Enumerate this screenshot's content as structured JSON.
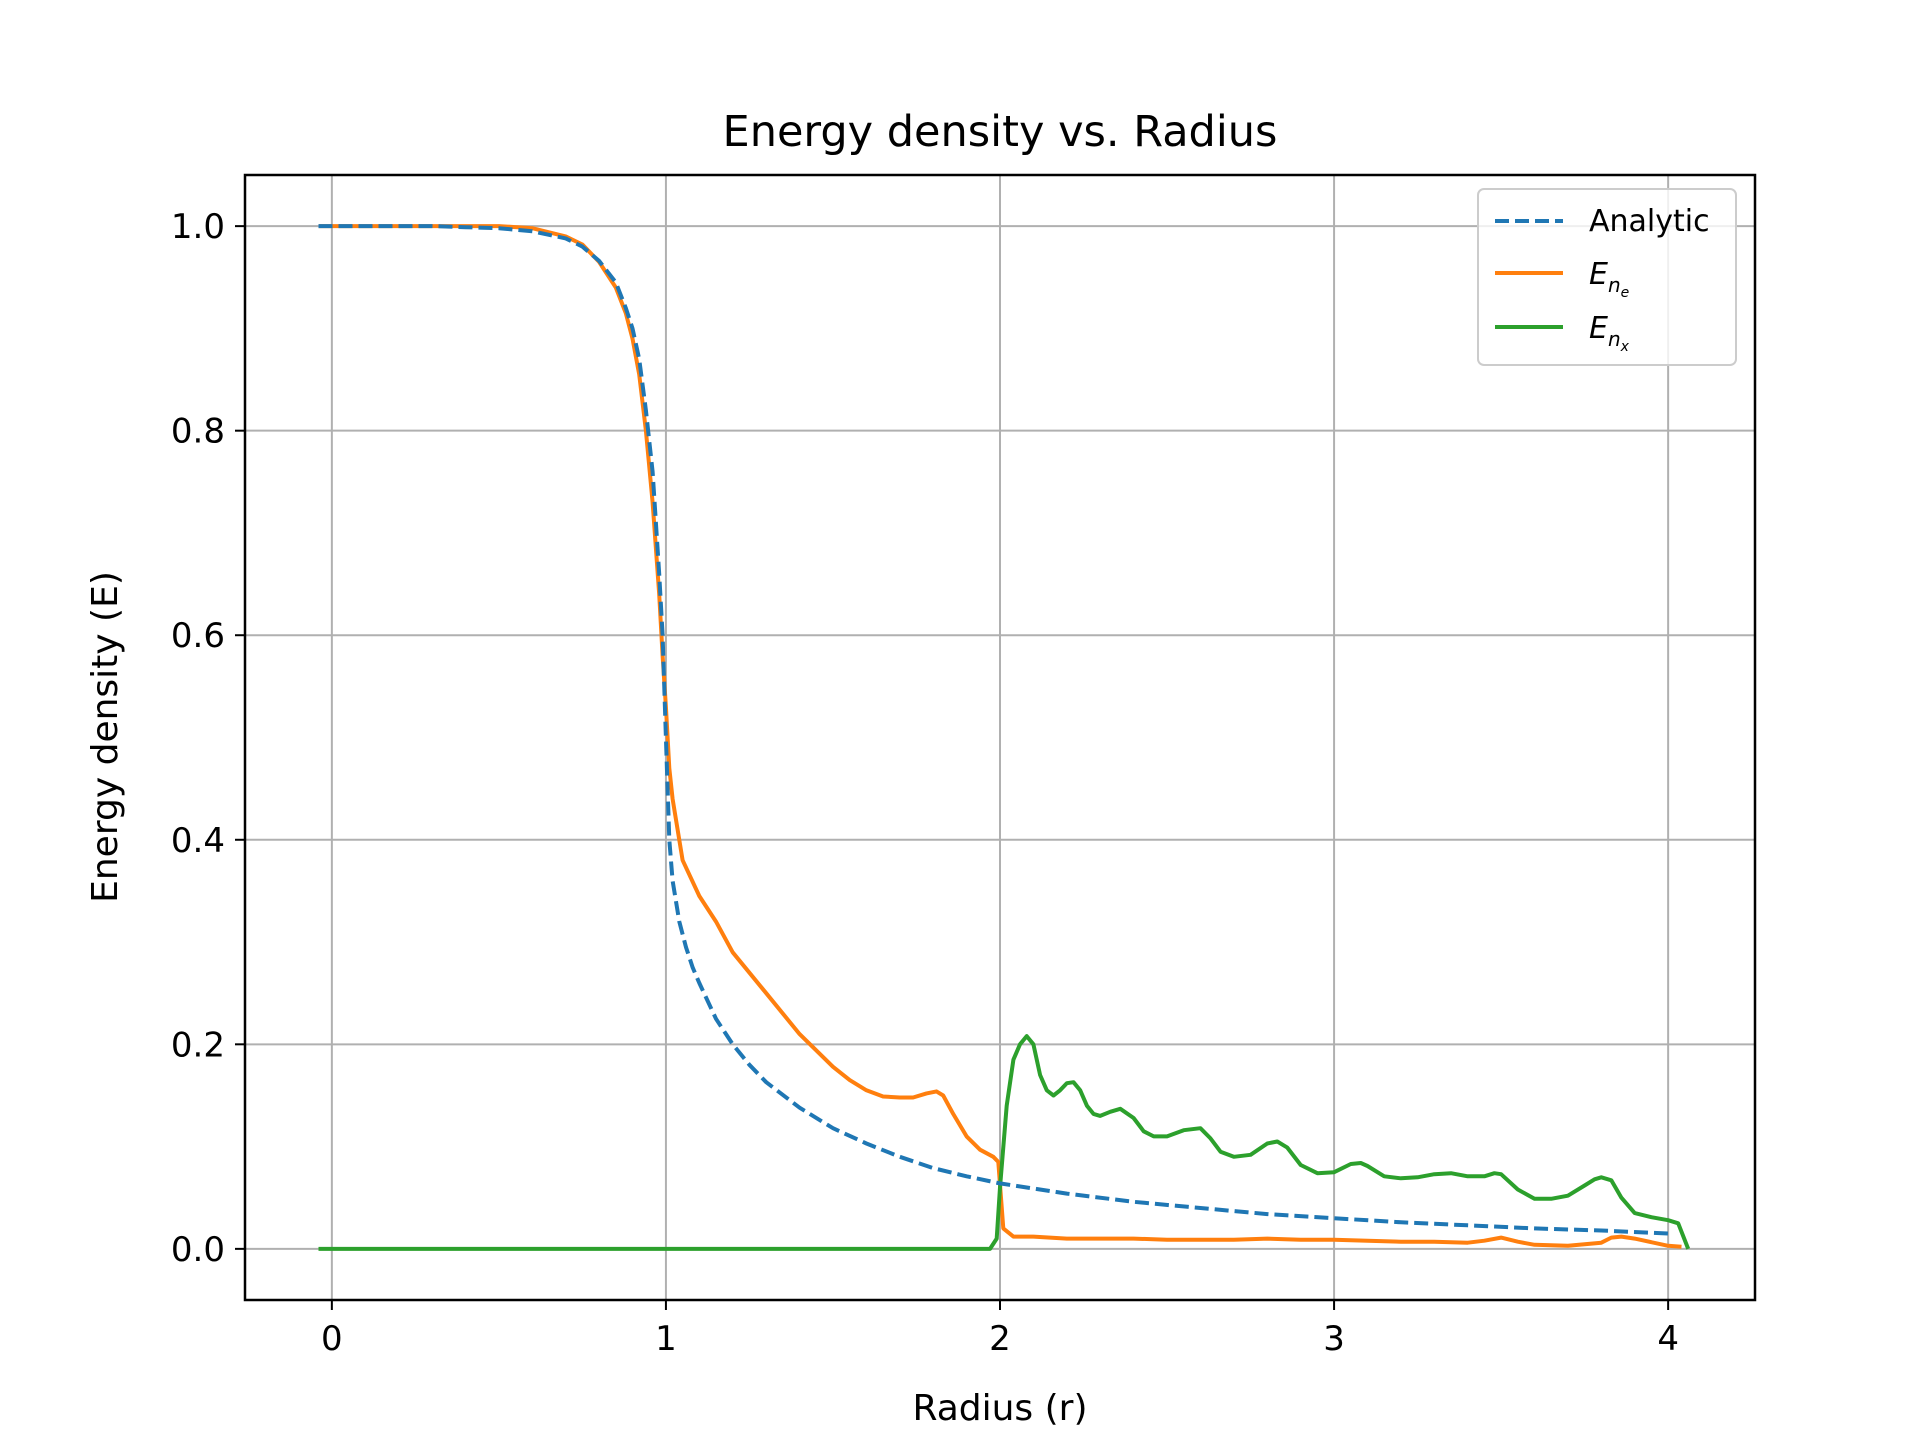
{
  "chart_data": {
    "type": "line",
    "title": "Energy density vs. Radius",
    "xlabel": "Radius (r)",
    "ylabel": "Energy density (E)",
    "xlim": [
      -0.26,
      4.26
    ],
    "ylim": [
      -0.05,
      1.05
    ],
    "xticks": [
      0,
      1,
      2,
      3,
      4
    ],
    "yticks": [
      0.0,
      0.2,
      0.4,
      0.6,
      0.8,
      1.0
    ],
    "xtick_labels": [
      "0",
      "1",
      "2",
      "3",
      "4"
    ],
    "ytick_labels": [
      "0.0",
      "0.2",
      "0.4",
      "0.6",
      "0.8",
      "1.0"
    ],
    "grid": true,
    "legend_position": "top-right",
    "colors": {
      "analytic": "#1f77b4",
      "ne": "#ff7f0e",
      "nx": "#2ca02c"
    },
    "series": [
      {
        "name": "Analytic",
        "style": "dashed",
        "color": "#1f77b4",
        "x": [
          -0.04,
          0.1,
          0.2,
          0.3,
          0.4,
          0.5,
          0.6,
          0.7,
          0.75,
          0.8,
          0.85,
          0.88,
          0.9,
          0.92,
          0.94,
          0.96,
          0.97,
          0.98,
          0.99,
          1.0,
          1.01,
          1.02,
          1.04,
          1.06,
          1.08,
          1.1,
          1.15,
          1.2,
          1.25,
          1.3,
          1.4,
          1.5,
          1.6,
          1.7,
          1.8,
          1.9,
          2.0,
          2.2,
          2.4,
          2.6,
          2.8,
          3.0,
          3.2,
          3.4,
          3.6,
          3.8,
          4.0
        ],
        "y": [
          1.0,
          1.0,
          1.0,
          1.0,
          0.999,
          0.998,
          0.995,
          0.988,
          0.98,
          0.966,
          0.945,
          0.92,
          0.9,
          0.87,
          0.82,
          0.76,
          0.71,
          0.66,
          0.6,
          0.5,
          0.4,
          0.36,
          0.32,
          0.295,
          0.275,
          0.26,
          0.225,
          0.2,
          0.18,
          0.163,
          0.138,
          0.118,
          0.103,
          0.09,
          0.079,
          0.071,
          0.064,
          0.054,
          0.046,
          0.04,
          0.034,
          0.03,
          0.026,
          0.023,
          0.02,
          0.018,
          0.015
        ]
      },
      {
        "name": "E_{n_e}",
        "name_parts": {
          "base": "E",
          "sub": "n",
          "subsub": "e"
        },
        "style": "solid",
        "color": "#ff7f0e",
        "x": [
          -0.04,
          0.1,
          0.2,
          0.3,
          0.4,
          0.5,
          0.6,
          0.7,
          0.75,
          0.8,
          0.85,
          0.88,
          0.9,
          0.92,
          0.94,
          0.96,
          0.98,
          0.99,
          1.0,
          1.01,
          1.02,
          1.05,
          1.1,
          1.15,
          1.2,
          1.3,
          1.4,
          1.5,
          1.55,
          1.6,
          1.65,
          1.7,
          1.74,
          1.78,
          1.81,
          1.83,
          1.86,
          1.9,
          1.94,
          1.98,
          1.995,
          2.01,
          2.04,
          2.1,
          2.2,
          2.3,
          2.4,
          2.5,
          2.6,
          2.7,
          2.8,
          2.9,
          3.0,
          3.1,
          3.2,
          3.3,
          3.4,
          3.45,
          3.5,
          3.55,
          3.6,
          3.7,
          3.8,
          3.83,
          3.86,
          3.9,
          4.0,
          4.04
        ],
        "y": [
          1.0,
          1.0,
          1.0,
          1.0,
          1.0,
          1.0,
          0.998,
          0.99,
          0.982,
          0.965,
          0.94,
          0.915,
          0.89,
          0.855,
          0.8,
          0.73,
          0.64,
          0.58,
          0.53,
          0.47,
          0.44,
          0.38,
          0.345,
          0.32,
          0.29,
          0.25,
          0.21,
          0.178,
          0.165,
          0.155,
          0.149,
          0.148,
          0.148,
          0.152,
          0.154,
          0.15,
          0.132,
          0.11,
          0.097,
          0.09,
          0.085,
          0.02,
          0.012,
          0.012,
          0.01,
          0.01,
          0.01,
          0.009,
          0.009,
          0.009,
          0.01,
          0.009,
          0.009,
          0.008,
          0.007,
          0.007,
          0.006,
          0.008,
          0.011,
          0.007,
          0.004,
          0.003,
          0.006,
          0.011,
          0.012,
          0.01,
          0.003,
          0.002
        ]
      },
      {
        "name": "E_{n_x}",
        "name_parts": {
          "base": "E",
          "sub": "n",
          "subsub": "x"
        },
        "style": "solid",
        "color": "#2ca02c",
        "x": [
          -0.04,
          1.0,
          1.97,
          1.99,
          2.0,
          2.02,
          2.04,
          2.06,
          2.08,
          2.1,
          2.12,
          2.14,
          2.16,
          2.18,
          2.2,
          2.22,
          2.24,
          2.26,
          2.28,
          2.3,
          2.33,
          2.36,
          2.4,
          2.43,
          2.46,
          2.5,
          2.55,
          2.6,
          2.63,
          2.66,
          2.7,
          2.75,
          2.8,
          2.83,
          2.86,
          2.9,
          2.95,
          3.0,
          3.05,
          3.08,
          3.1,
          3.15,
          3.2,
          3.25,
          3.3,
          3.35,
          3.4,
          3.45,
          3.48,
          3.5,
          3.55,
          3.6,
          3.65,
          3.7,
          3.75,
          3.78,
          3.8,
          3.83,
          3.86,
          3.9,
          3.95,
          4.0,
          4.03,
          4.06
        ],
        "y": [
          0.0,
          0.0,
          0.0,
          0.01,
          0.06,
          0.14,
          0.185,
          0.2,
          0.208,
          0.2,
          0.17,
          0.155,
          0.15,
          0.155,
          0.162,
          0.163,
          0.155,
          0.14,
          0.132,
          0.13,
          0.134,
          0.137,
          0.128,
          0.115,
          0.11,
          0.11,
          0.116,
          0.118,
          0.108,
          0.095,
          0.09,
          0.092,
          0.103,
          0.105,
          0.099,
          0.082,
          0.074,
          0.075,
          0.083,
          0.084,
          0.081,
          0.071,
          0.069,
          0.07,
          0.073,
          0.074,
          0.071,
          0.071,
          0.074,
          0.073,
          0.058,
          0.049,
          0.049,
          0.052,
          0.062,
          0.068,
          0.07,
          0.067,
          0.05,
          0.035,
          0.031,
          0.028,
          0.025,
          0.0
        ]
      }
    ]
  }
}
